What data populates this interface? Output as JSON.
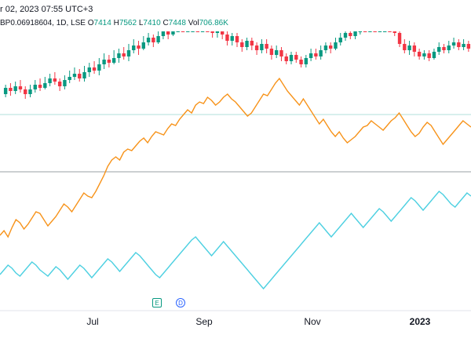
{
  "header": {
    "datetime": "r 02, 2023 07:55 UTC+3",
    "symbol_line": "BP0.06918604, 1D, LSE",
    "open_label": "O",
    "open": "7414",
    "high_label": "H",
    "high": "7562",
    "low_label": "L",
    "low": "7410",
    "close_label": "C",
    "close": "7448",
    "vol_label": "Vol",
    "vol": "706.86K"
  },
  "colors": {
    "up": "#089981",
    "down": "#f23645",
    "orange": "#f7931a",
    "cyan": "#4dd0e1",
    "grid": "#d1d4dc"
  },
  "events": {
    "earnings": "E",
    "dividend": "D"
  },
  "chart_data": {
    "type": "line",
    "x_ticks": [
      "Jul",
      "Sep",
      "Nov",
      "2023"
    ],
    "candles": [
      [
        120,
        128,
        132,
        116
      ],
      [
        128,
        124,
        134,
        118
      ],
      [
        124,
        130,
        136,
        120
      ],
      [
        130,
        126,
        138,
        122
      ],
      [
        126,
        120,
        130,
        114
      ],
      [
        120,
        126,
        132,
        116
      ],
      [
        126,
        132,
        138,
        122
      ],
      [
        132,
        128,
        140,
        124
      ],
      [
        128,
        134,
        142,
        126
      ],
      [
        134,
        140,
        146,
        130
      ],
      [
        140,
        136,
        148,
        132
      ],
      [
        136,
        130,
        140,
        124
      ],
      [
        130,
        138,
        144,
        126
      ],
      [
        138,
        142,
        150,
        134
      ],
      [
        142,
        146,
        154,
        138
      ],
      [
        146,
        140,
        152,
        136
      ],
      [
        140,
        148,
        156,
        136
      ],
      [
        148,
        154,
        160,
        142
      ],
      [
        154,
        150,
        162,
        146
      ],
      [
        150,
        158,
        166,
        144
      ],
      [
        158,
        164,
        172,
        152
      ],
      [
        164,
        160,
        170,
        154
      ],
      [
        160,
        166,
        176,
        158
      ],
      [
        166,
        172,
        178,
        160
      ],
      [
        172,
        168,
        180,
        164
      ],
      [
        168,
        176,
        184,
        162
      ],
      [
        176,
        182,
        190,
        172
      ],
      [
        182,
        178,
        188,
        170
      ],
      [
        178,
        186,
        194,
        176
      ],
      [
        186,
        192,
        198,
        182
      ],
      [
        192,
        186,
        196,
        180
      ],
      [
        186,
        194,
        202,
        184
      ],
      [
        194,
        200,
        210,
        190
      ],
      [
        200,
        196,
        206,
        190
      ],
      [
        196,
        204,
        214,
        194
      ],
      [
        204,
        212,
        220,
        200
      ],
      [
        212,
        206,
        218,
        200
      ],
      [
        206,
        214,
        222,
        202
      ],
      [
        214,
        220,
        228,
        210
      ],
      [
        220,
        216,
        226,
        210
      ],
      [
        216,
        222,
        230,
        212
      ],
      [
        222,
        210,
        226,
        206
      ],
      [
        210,
        198,
        214,
        192
      ],
      [
        198,
        204,
        210,
        192
      ],
      [
        204,
        196,
        208,
        190
      ],
      [
        196,
        188,
        200,
        182
      ],
      [
        188,
        194,
        198,
        182
      ],
      [
        194,
        186,
        198,
        180
      ],
      [
        186,
        180,
        190,
        174
      ],
      [
        180,
        188,
        192,
        176
      ],
      [
        188,
        182,
        192,
        176
      ],
      [
        182,
        176,
        186,
        170
      ],
      [
        176,
        184,
        190,
        172
      ],
      [
        184,
        178,
        190,
        172
      ],
      [
        178,
        170,
        182,
        164
      ],
      [
        170,
        176,
        182,
        166
      ],
      [
        176,
        168,
        180,
        162
      ],
      [
        168,
        162,
        172,
        158
      ],
      [
        162,
        170,
        174,
        158
      ],
      [
        170,
        164,
        174,
        160
      ],
      [
        164,
        158,
        168,
        154
      ],
      [
        158,
        166,
        170,
        154
      ],
      [
        166,
        172,
        178,
        162
      ],
      [
        172,
        168,
        178,
        164
      ],
      [
        168,
        176,
        182,
        164
      ],
      [
        176,
        182,
        186,
        172
      ],
      [
        182,
        178,
        186,
        172
      ],
      [
        178,
        186,
        192,
        176
      ],
      [
        186,
        192,
        198,
        182
      ],
      [
        192,
        198,
        206,
        188
      ],
      [
        198,
        194,
        204,
        190
      ],
      [
        194,
        202,
        208,
        190
      ],
      [
        202,
        208,
        212,
        196
      ],
      [
        208,
        204,
        214,
        200
      ],
      [
        204,
        210,
        216,
        202
      ],
      [
        210,
        206,
        216,
        200
      ],
      [
        206,
        212,
        218,
        204
      ],
      [
        212,
        218,
        222,
        208
      ],
      [
        218,
        214,
        222,
        208
      ],
      [
        214,
        198,
        218,
        194
      ],
      [
        198,
        184,
        202,
        180
      ],
      [
        184,
        176,
        190,
        172
      ],
      [
        176,
        182,
        188,
        170
      ],
      [
        182,
        174,
        186,
        168
      ],
      [
        174,
        168,
        178,
        164
      ],
      [
        168,
        172,
        176,
        164
      ],
      [
        172,
        166,
        176,
        162
      ],
      [
        166,
        174,
        178,
        164
      ],
      [
        174,
        180,
        186,
        170
      ],
      [
        180,
        176,
        184,
        172
      ],
      [
        176,
        182,
        188,
        172
      ],
      [
        182,
        186,
        192,
        178
      ],
      [
        186,
        180,
        190,
        176
      ],
      [
        180,
        184,
        190,
        176
      ],
      [
        184,
        178,
        188,
        174
      ]
    ],
    "orange": [
      130,
      136,
      128,
      140,
      150,
      146,
      138,
      144,
      152,
      160,
      158,
      150,
      142,
      148,
      154,
      162,
      170,
      166,
      160,
      168,
      176,
      184,
      180,
      178,
      186,
      196,
      206,
      218,
      226,
      230,
      226,
      236,
      240,
      238,
      244,
      250,
      254,
      248,
      256,
      262,
      260,
      258,
      266,
      272,
      270,
      278,
      284,
      290,
      286,
      296,
      300,
      298,
      306,
      302,
      296,
      300,
      306,
      310,
      304,
      300,
      294,
      288,
      282,
      286,
      294,
      302,
      310,
      308,
      316,
      324,
      330,
      322,
      314,
      308,
      302,
      296,
      304,
      296,
      288,
      280,
      272,
      278,
      270,
      262,
      256,
      262,
      254,
      248,
      252,
      256,
      262,
      268,
      270,
      276,
      272,
      268,
      264,
      270,
      276,
      280,
      286,
      278,
      270,
      262,
      256,
      260,
      268,
      274,
      270,
      262,
      254,
      246,
      252,
      258,
      264,
      270,
      276,
      272,
      268
    ],
    "cyan": [
      60,
      66,
      72,
      68,
      62,
      58,
      64,
      70,
      76,
      72,
      66,
      62,
      58,
      64,
      70,
      66,
      60,
      54,
      60,
      66,
      72,
      68,
      62,
      56,
      62,
      68,
      74,
      80,
      76,
      70,
      64,
      70,
      76,
      82,
      88,
      84,
      78,
      72,
      66,
      60,
      56,
      62,
      68,
      74,
      80,
      86,
      92,
      98,
      104,
      108,
      102,
      96,
      90,
      84,
      90,
      96,
      102,
      96,
      90,
      84,
      78,
      72,
      66,
      60,
      54,
      48,
      42,
      48,
      54,
      60,
      66,
      72,
      78,
      84,
      90,
      96,
      102,
      108,
      114,
      120,
      126,
      120,
      114,
      108,
      114,
      120,
      126,
      132,
      138,
      132,
      126,
      120,
      126,
      132,
      138,
      144,
      140,
      134,
      128,
      134,
      140,
      146,
      152,
      158,
      154,
      148,
      142,
      148,
      154,
      160,
      166,
      162,
      156,
      150,
      146,
      152,
      158,
      164,
      160
    ],
    "horizontal_levels": [
      "upper",
      "lower"
    ]
  }
}
